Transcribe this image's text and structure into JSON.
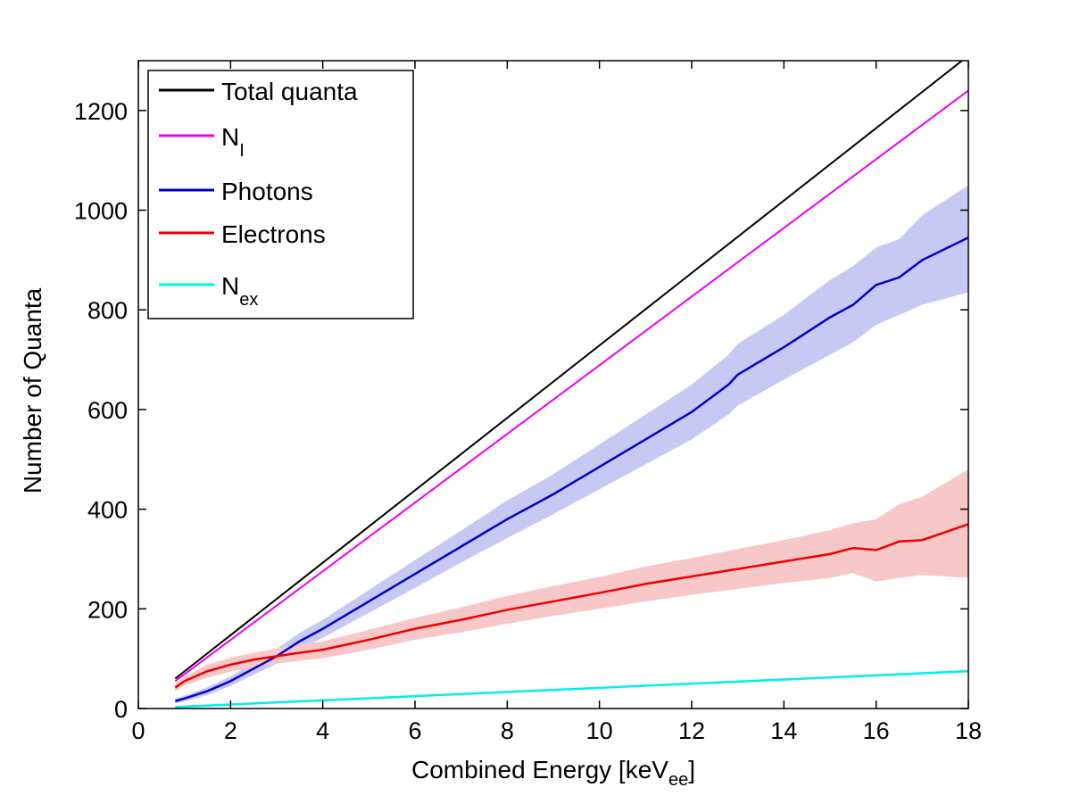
{
  "chart_data": {
    "type": "line",
    "xlabel": "Combined Energy [keV",
    "xlabel_sub": "ee",
    "xlabel_suffix": "]",
    "ylabel": "Number of Quanta",
    "xlim": [
      0,
      18
    ],
    "ylim": [
      0,
      1300
    ],
    "xticks": [
      "0",
      "2",
      "4",
      "6",
      "8",
      "10",
      "12",
      "14",
      "16",
      "18"
    ],
    "yticks": [
      "0",
      "200",
      "400",
      "600",
      "800",
      "1000",
      "1200"
    ],
    "xtick_values": [
      0,
      2,
      4,
      6,
      8,
      10,
      12,
      14,
      16,
      18
    ],
    "ytick_values": [
      0,
      200,
      400,
      600,
      800,
      1000,
      1200
    ],
    "grid": false,
    "legend_position": "top-left",
    "series": [
      {
        "name": "Total quanta",
        "color": "#000000",
        "x": [
          0.8,
          18
        ],
        "y": [
          60,
          1310
        ]
      },
      {
        "name": "N",
        "name_sub": "I",
        "color": "#ee00ee",
        "x": [
          0.8,
          18
        ],
        "y": [
          55,
          1240
        ]
      },
      {
        "name": "Photons",
        "color": "#0000cc",
        "band_color": "#c8c8f4",
        "x": [
          0.8,
          1,
          1.5,
          2,
          2.5,
          3,
          3.5,
          4,
          5,
          6,
          7,
          8,
          9,
          10,
          11,
          12,
          12.8,
          13,
          14,
          15,
          15.5,
          16,
          16.5,
          17,
          18
        ],
        "y": [
          15,
          20,
          35,
          55,
          80,
          105,
          135,
          160,
          215,
          270,
          325,
          380,
          430,
          485,
          540,
          595,
          650,
          670,
          725,
          785,
          810,
          850,
          865,
          900,
          945
        ],
        "y_lower": [
          10,
          14,
          27,
          45,
          68,
          90,
          118,
          142,
          192,
          242,
          293,
          342,
          390,
          440,
          490,
          540,
          590,
          608,
          660,
          710,
          735,
          770,
          790,
          810,
          835
        ],
        "y_upper": [
          20,
          26,
          43,
          65,
          92,
          120,
          152,
          178,
          238,
          298,
          357,
          418,
          470,
          530,
          590,
          650,
          710,
          732,
          790,
          860,
          888,
          925,
          942,
          990,
          1050
        ]
      },
      {
        "name": "Electrons",
        "color": "#ee0000",
        "band_color": "#f8c8c8",
        "x": [
          0.8,
          1,
          1.5,
          2,
          2.5,
          3,
          3.5,
          4,
          5,
          6,
          7,
          8,
          9,
          10,
          11,
          12,
          13,
          14,
          15,
          15.5,
          16,
          16.5,
          17,
          18
        ],
        "y": [
          42,
          55,
          75,
          88,
          98,
          105,
          112,
          118,
          138,
          160,
          178,
          198,
          215,
          232,
          250,
          265,
          280,
          295,
          310,
          322,
          318,
          335,
          338,
          370
        ],
        "y_lower": [
          35,
          46,
          62,
          74,
          84,
          90,
          96,
          101,
          118,
          138,
          153,
          170,
          186,
          200,
          215,
          228,
          240,
          252,
          262,
          272,
          255,
          262,
          268,
          262
        ],
        "y_upper": [
          50,
          64,
          88,
          102,
          112,
          120,
          128,
          135,
          158,
          182,
          203,
          226,
          246,
          264,
          285,
          302,
          320,
          338,
          358,
          372,
          380,
          410,
          425,
          480
        ]
      },
      {
        "name": "N",
        "name_sub": "ex",
        "color": "#00eeee",
        "x": [
          0.8,
          18
        ],
        "y": [
          3,
          75
        ]
      }
    ]
  }
}
